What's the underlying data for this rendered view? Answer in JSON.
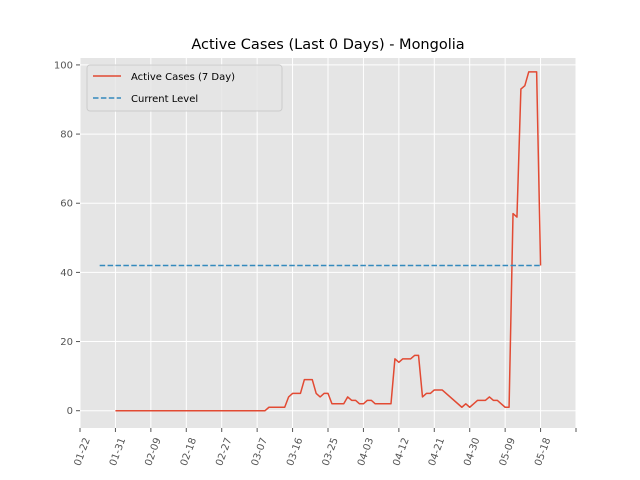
{
  "chart_data": {
    "type": "line",
    "title": "Active Cases (Last 0 Days) - Mongolia",
    "xlabel": "",
    "ylabel": "",
    "x_type": "date",
    "xlim": [
      "2020-01-22",
      "2020-05-27"
    ],
    "ylim": [
      -5,
      102
    ],
    "x_ticks": [
      "2020-01-22",
      "2020-01-31",
      "2020-02-09",
      "2020-02-18",
      "2020-02-27",
      "2020-03-07",
      "2020-03-16",
      "2020-03-25",
      "2020-04-03",
      "2020-04-12",
      "2020-04-21",
      "2020-04-30",
      "2020-05-09",
      "2020-05-18",
      "2020-05-27"
    ],
    "x_tick_labels": [
      "01-22",
      "01-31",
      "02-09",
      "02-18",
      "02-27",
      "03-07",
      "03-16",
      "03-25",
      "04-03",
      "04-12",
      "04-21",
      "04-30",
      "05-09",
      "05-18",
      ""
    ],
    "y_ticks": [
      0,
      20,
      40,
      60,
      80,
      100
    ],
    "y_tick_labels": [
      "0",
      "20",
      "40",
      "60",
      "80",
      "100"
    ],
    "grid": true,
    "legend": "upper-left",
    "series": [
      {
        "name": "Active Cases (7 Day)",
        "color": "#e24a33",
        "style": "solid",
        "points": [
          [
            "2020-01-31",
            0
          ],
          [
            "2020-03-09",
            0
          ],
          [
            "2020-03-10",
            1
          ],
          [
            "2020-03-14",
            1
          ],
          [
            "2020-03-15",
            4
          ],
          [
            "2020-03-16",
            5
          ],
          [
            "2020-03-17",
            5
          ],
          [
            "2020-03-18",
            5
          ],
          [
            "2020-03-19",
            9
          ],
          [
            "2020-03-21",
            9
          ],
          [
            "2020-03-22",
            5
          ],
          [
            "2020-03-23",
            4
          ],
          [
            "2020-03-24",
            5
          ],
          [
            "2020-03-25",
            5
          ],
          [
            "2020-03-26",
            2
          ],
          [
            "2020-03-29",
            2
          ],
          [
            "2020-03-30",
            4
          ],
          [
            "2020-03-31",
            3
          ],
          [
            "2020-04-01",
            3
          ],
          [
            "2020-04-02",
            2
          ],
          [
            "2020-04-03",
            2
          ],
          [
            "2020-04-04",
            3
          ],
          [
            "2020-04-05",
            3
          ],
          [
            "2020-04-06",
            2
          ],
          [
            "2020-04-10",
            2
          ],
          [
            "2020-04-11",
            15
          ],
          [
            "2020-04-12",
            14
          ],
          [
            "2020-04-13",
            15
          ],
          [
            "2020-04-15",
            15
          ],
          [
            "2020-04-16",
            16
          ],
          [
            "2020-04-17",
            16
          ],
          [
            "2020-04-18",
            4
          ],
          [
            "2020-04-19",
            5
          ],
          [
            "2020-04-20",
            5
          ],
          [
            "2020-04-21",
            6
          ],
          [
            "2020-04-23",
            6
          ],
          [
            "2020-04-28",
            1
          ],
          [
            "2020-04-29",
            2
          ],
          [
            "2020-04-30",
            1
          ],
          [
            "2020-05-01",
            2
          ],
          [
            "2020-05-02",
            3
          ],
          [
            "2020-05-04",
            3
          ],
          [
            "2020-05-05",
            4
          ],
          [
            "2020-05-06",
            3
          ],
          [
            "2020-05-07",
            3
          ],
          [
            "2020-05-08",
            2
          ],
          [
            "2020-05-09",
            1
          ],
          [
            "2020-05-10",
            1
          ],
          [
            "2020-05-11",
            57
          ],
          [
            "2020-05-12",
            56
          ],
          [
            "2020-05-13",
            93
          ],
          [
            "2020-05-14",
            94
          ],
          [
            "2020-05-15",
            98
          ],
          [
            "2020-05-17",
            98
          ],
          [
            "2020-05-18",
            42
          ]
        ]
      },
      {
        "name": "Current Level",
        "color": "#348abd",
        "style": "dashed",
        "points": [
          [
            "2020-01-27",
            42
          ],
          [
            "2020-05-18",
            42
          ]
        ]
      }
    ]
  }
}
